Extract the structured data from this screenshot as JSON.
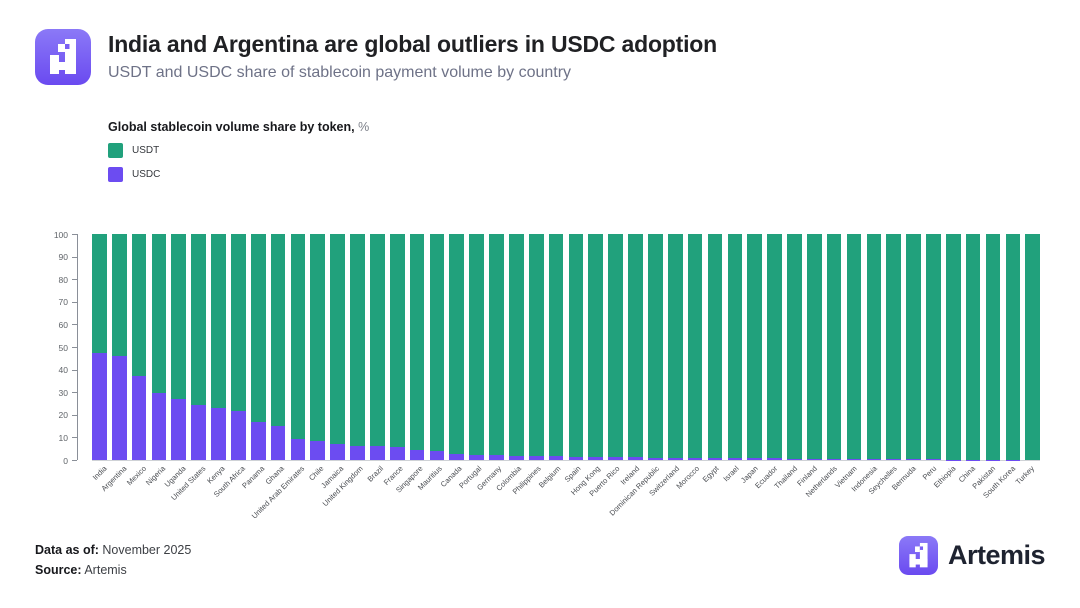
{
  "header": {
    "title": "India and Argentina are global outliers in USDC adoption",
    "subtitle": "USDT and USDC share of stablecoin payment volume by country"
  },
  "legend": {
    "title": "Global stablecoin volume share by token,",
    "title_suffix": "%",
    "items": [
      {
        "label": "USDT",
        "color": "#21a17c"
      },
      {
        "label": "USDC",
        "color": "#6c4cf1"
      }
    ]
  },
  "chart_data": {
    "type": "bar",
    "stacked": true,
    "title": "Global stablecoin volume share by token, %",
    "xlabel": "",
    "ylabel": "",
    "ylim": [
      0,
      100
    ],
    "y_ticks": [
      100,
      90,
      80,
      70,
      60,
      50,
      40,
      30,
      20,
      10,
      0
    ],
    "grid": false,
    "legend_position": "top-left",
    "categories": [
      "India",
      "Argentina",
      "Mexico",
      "Nigeria",
      "Uganda",
      "United States",
      "Kenya",
      "South Africa",
      "Panama",
      "Ghana",
      "United Arab Emirates",
      "Chile",
      "Jamaica",
      "United Kingdom",
      "Brazil",
      "France",
      "Singapore",
      "Mauritius",
      "Canada",
      "Portugal",
      "Germany",
      "Colombia",
      "Philippines",
      "Belgium",
      "Spain",
      "Hong Kong",
      "Puerto Rico",
      "Ireland",
      "Dominican Republic",
      "Switzerland",
      "Morocco",
      "Egypt",
      "Israel",
      "Japan",
      "Ecuador",
      "Thailand",
      "Finland",
      "Netherlands",
      "Vietnam",
      "Indonesia",
      "Seychelles",
      "Bermuda",
      "Peru",
      "Ethiopia",
      "China",
      "Pakistan",
      "South Korea",
      "Turkey"
    ],
    "series": [
      {
        "name": "USDT",
        "color": "#21a17c",
        "values": [
          52.5,
          54,
          63,
          70.5,
          73,
          75.5,
          77,
          78.5,
          83,
          85,
          90.5,
          91.5,
          92.7,
          93.7,
          94,
          94.4,
          95.4,
          95.8,
          97.2,
          97.8,
          98,
          98.2,
          98.3,
          98.4,
          98.5,
          98.6,
          98.7,
          98.8,
          98.9,
          99,
          99.1,
          99.1,
          99.2,
          99.3,
          99.3,
          99.4,
          99.4,
          99.5,
          99.5,
          99.6,
          99.6,
          99.7,
          99.7,
          99.8,
          99.8,
          99.9,
          99.9,
          100
        ]
      },
      {
        "name": "USDC",
        "color": "#6c4cf1",
        "values": [
          47.5,
          46,
          37,
          29.5,
          27,
          24.5,
          23,
          21.5,
          17,
          15,
          9.5,
          8.5,
          7.3,
          6.3,
          6,
          5.6,
          4.6,
          4.2,
          2.8,
          2.2,
          2,
          1.8,
          1.7,
          1.6,
          1.5,
          1.4,
          1.3,
          1.2,
          1.1,
          1,
          0.9,
          0.9,
          0.8,
          0.7,
          0.7,
          0.6,
          0.6,
          0.5,
          0.5,
          0.4,
          0.4,
          0.3,
          0.3,
          0.2,
          0.2,
          0.1,
          0.1,
          0
        ]
      }
    ]
  },
  "footer": {
    "data_as_of_label": "Data as of:",
    "data_as_of_value": "November 2025",
    "source_label": "Source:",
    "source_value": "Artemis",
    "brand": "Artemis"
  }
}
